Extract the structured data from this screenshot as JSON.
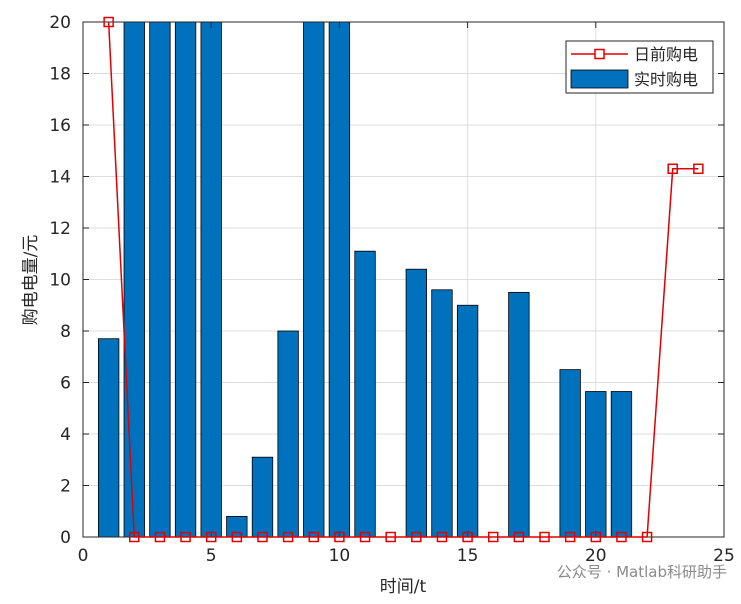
{
  "chart_data": {
    "type": "bar",
    "xlabel": "时间/t",
    "ylabel": "购电电量/元",
    "xlim": [
      0,
      25
    ],
    "ylim": [
      0,
      20
    ],
    "xticks": [
      0,
      5,
      10,
      15,
      20,
      25
    ],
    "yticks": [
      0,
      2,
      4,
      6,
      8,
      10,
      12,
      14,
      16,
      18,
      20
    ],
    "grid": true,
    "legend_position": "top-right",
    "bar_series": {
      "name": "实时购电",
      "color": "#0072BD",
      "x": [
        1,
        2,
        3,
        4,
        5,
        6,
        7,
        8,
        9,
        10,
        11,
        12,
        13,
        14,
        15,
        16,
        17,
        18,
        19,
        20,
        21,
        22,
        23,
        24
      ],
      "values": [
        7.7,
        20,
        20,
        20,
        20,
        0.8,
        3.1,
        8.0,
        20,
        20,
        11.1,
        0,
        10.4,
        9.6,
        9.0,
        0,
        9.5,
        0,
        6.5,
        5.65,
        5.65,
        0,
        0,
        0
      ]
    },
    "line_series": {
      "name": "日前购电",
      "color": "#E00000",
      "marker": "square",
      "x": [
        1,
        2,
        3,
        4,
        5,
        6,
        7,
        8,
        9,
        10,
        11,
        12,
        13,
        14,
        15,
        16,
        17,
        18,
        19,
        20,
        21,
        22,
        23,
        24
      ],
      "values": [
        20,
        0,
        0,
        0,
        0,
        0,
        0,
        0,
        0,
        0,
        0,
        0,
        0,
        0,
        0,
        0,
        0,
        0,
        0,
        0,
        0,
        0,
        14.3,
        14.3
      ]
    }
  },
  "watermark": "公众号 · Matlab科研助手"
}
